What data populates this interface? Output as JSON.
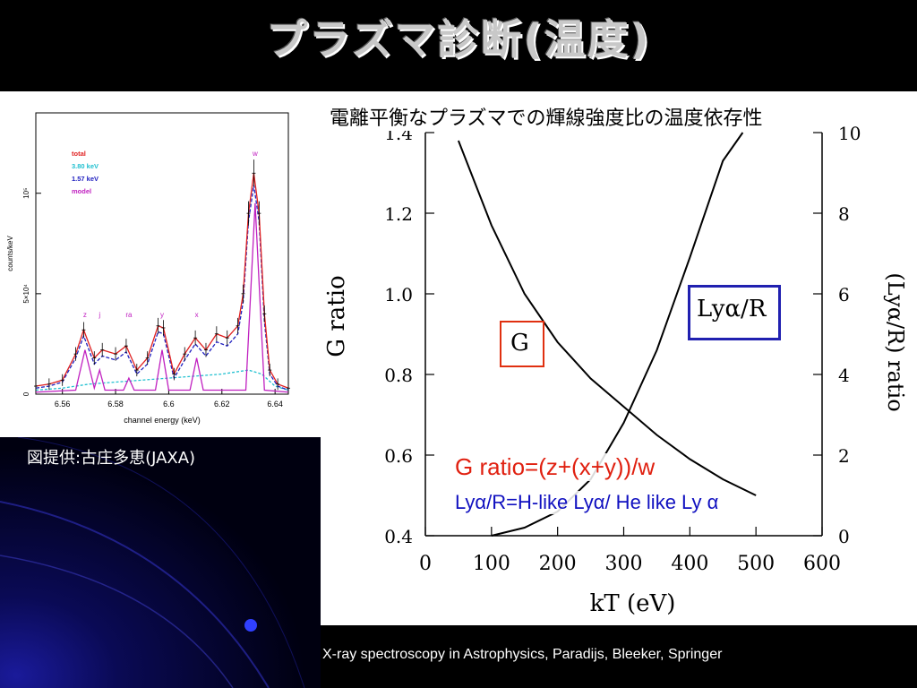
{
  "slide": {
    "title": "プラズマ診断(温度)",
    "credit": "図提供:古庄多恵(JAXA)",
    "subtitle": "電離平衡なプラズマでの輝線強度比の温度依存性",
    "footer": "X-ray spectroscopy in Astrophysics, Paradijs, Bleeker, Springer"
  },
  "colors": {
    "background": "#000000",
    "g_color": "#e03010",
    "ly_color": "#2020b0",
    "accent_blue": "#1010c0"
  },
  "annotations": {
    "g_box": "G",
    "ly_box": "Lyα/R",
    "g_formula": "G ratio=(z+(x+y))/w",
    "ly_formula": "Lyα/R=H-like Lyα/ He like Ly α"
  },
  "chart_data": [
    {
      "type": "line",
      "xlabel": "channel energy (keV)",
      "ylabel": "counts/keV",
      "xlim": [
        6.55,
        6.645
      ],
      "ylim": [
        0,
        140000
      ],
      "xticks": [
        "6.56",
        "6.58",
        "6.6",
        "6.62",
        "6.64"
      ],
      "yticks": [
        "0",
        "5×10⁴",
        "10⁵"
      ],
      "legend": [
        {
          "label": "total",
          "color": "#e02020"
        },
        {
          "label": "3.80 keV",
          "color": "#20c0d0"
        },
        {
          "label": "1.57 keV",
          "color": "#2020c0"
        },
        {
          "label": "model",
          "color": "#c020c0"
        }
      ],
      "line_labels": [
        "z",
        "j",
        "ra",
        "y",
        "x",
        "w"
      ],
      "line_positions_keV": [
        6.5685,
        6.574,
        6.585,
        6.5975,
        6.6105,
        6.6325
      ],
      "series": [
        {
          "name": "total",
          "color": "#e02020",
          "x": [
            6.55,
            6.555,
            6.56,
            6.565,
            6.568,
            6.572,
            6.575,
            6.58,
            6.584,
            6.588,
            6.592,
            6.596,
            6.598,
            6.602,
            6.606,
            6.61,
            6.614,
            6.618,
            6.622,
            6.626,
            6.628,
            6.63,
            6.632,
            6.634,
            6.636,
            6.638,
            6.641,
            6.645
          ],
          "y": [
            4000,
            5000,
            7000,
            20000,
            32000,
            18000,
            22000,
            20000,
            24000,
            12000,
            18000,
            34000,
            33000,
            10000,
            20000,
            28000,
            22000,
            30000,
            28000,
            34000,
            50000,
            90000,
            110000,
            90000,
            40000,
            12000,
            5000,
            3000
          ]
        },
        {
          "name": "1.57 keV",
          "color": "#2020c0",
          "x": [
            6.55,
            6.555,
            6.56,
            6.565,
            6.568,
            6.572,
            6.575,
            6.58,
            6.584,
            6.588,
            6.592,
            6.596,
            6.598,
            6.602,
            6.606,
            6.61,
            6.614,
            6.618,
            6.622,
            6.626,
            6.628,
            6.63,
            6.632,
            6.634,
            6.636,
            6.638,
            6.641,
            6.645
          ],
          "y": [
            3000,
            4000,
            6000,
            18000,
            29000,
            15000,
            19000,
            17000,
            21000,
            10000,
            15000,
            31000,
            30000,
            8000,
            17000,
            25000,
            19000,
            26000,
            24000,
            30000,
            46000,
            86000,
            104000,
            86000,
            36000,
            10000,
            4000,
            2000
          ]
        },
        {
          "name": "3.80 keV",
          "color": "#20c0d0",
          "x": [
            6.55,
            6.56,
            6.57,
            6.58,
            6.59,
            6.6,
            6.61,
            6.62,
            6.63,
            6.635,
            6.64,
            6.645
          ],
          "y": [
            2000,
            3000,
            5000,
            6000,
            7000,
            8000,
            9000,
            10000,
            12000,
            10000,
            4000,
            2000
          ]
        },
        {
          "name": "model",
          "color": "#c020c0",
          "x": [
            6.55,
            6.565,
            6.5685,
            6.572,
            6.574,
            6.576,
            6.583,
            6.585,
            6.587,
            6.595,
            6.5975,
            6.6,
            6.608,
            6.6105,
            6.613,
            6.629,
            6.6325,
            6.636,
            6.645
          ],
          "y": [
            1000,
            2000,
            22000,
            3000,
            12000,
            2000,
            2000,
            8000,
            2000,
            2000,
            22000,
            2000,
            2000,
            18000,
            2000,
            2000,
            95000,
            2000,
            1000
          ]
        }
      ]
    },
    {
      "type": "line",
      "xlabel": "kT (eV)",
      "ylabel": "G  ratio",
      "y2label": "(Lyα/R) ratio",
      "xlim": [
        0,
        600
      ],
      "ylim": [
        0.4,
        1.4
      ],
      "y2lim": [
        0,
        10
      ],
      "xticks": [
        "0",
        "100",
        "200",
        "300",
        "400",
        "500",
        "600"
      ],
      "yticks": [
        "0.4",
        "0.6",
        "0.8",
        "1.0",
        "1.2",
        "1.4"
      ],
      "y2ticks": [
        "0",
        "2",
        "4",
        "6",
        "8",
        "10"
      ],
      "series": [
        {
          "name": "G",
          "axis": "left",
          "x": [
            50,
            100,
            150,
            200,
            250,
            300,
            350,
            400,
            450,
            500
          ],
          "y": [
            1.38,
            1.17,
            1.0,
            0.88,
            0.79,
            0.72,
            0.65,
            0.59,
            0.54,
            0.5
          ]
        },
        {
          "name": "Lyα/R",
          "axis": "right",
          "x": [
            100,
            150,
            200,
            250,
            300,
            350,
            400,
            450,
            480
          ],
          "y": [
            0.0,
            0.2,
            0.6,
            1.4,
            2.8,
            4.6,
            6.9,
            9.3,
            10.0
          ]
        }
      ]
    }
  ]
}
